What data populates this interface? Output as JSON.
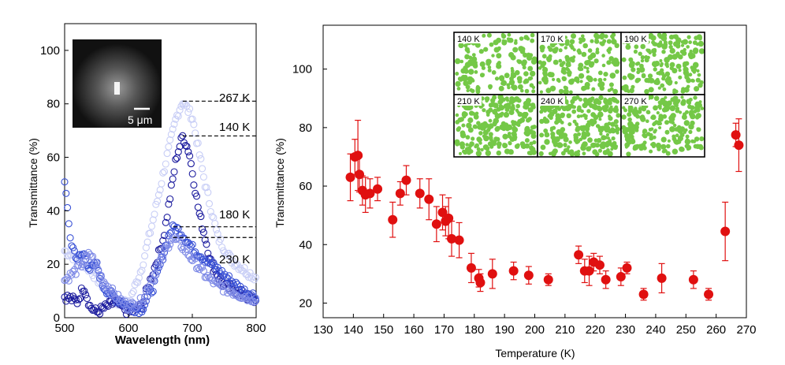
{
  "chart_data": [
    {
      "type": "scatter",
      "xlabel": "Wavelength (nm)",
      "ylabel": "Transmittance (%)",
      "xlim": [
        500,
        800
      ],
      "ylim": [
        0,
        110
      ],
      "x_ticks": [
        "500",
        "600",
        "700",
        "800"
      ],
      "y_ticks": [
        "0",
        "20",
        "40",
        "60",
        "80",
        "100"
      ],
      "marker": "open circle",
      "inset": {
        "scale_bar": "5 μm"
      },
      "annotations": [
        "267 K",
        "140 K",
        "180 K",
        "230 K"
      ],
      "series": [
        {
          "label": "267 K",
          "peak_x": 685,
          "peak_y": 81,
          "color": "#c8cef6",
          "points": [
            [
              500,
              25
            ],
            [
              520,
              22
            ],
            [
              540,
              18
            ],
            [
              560,
              12
            ],
            [
              580,
              6
            ],
            [
              600,
              5
            ],
            [
              620,
              18
            ],
            [
              640,
              38
            ],
            [
              660,
              60
            ],
            [
              675,
              75
            ],
            [
              685,
              81
            ],
            [
              700,
              75
            ],
            [
              720,
              50
            ],
            [
              740,
              30
            ],
            [
              760,
              22
            ],
            [
              780,
              18
            ],
            [
              800,
              15
            ]
          ]
        },
        {
          "label": "140 K",
          "peak_x": 685,
          "peak_y": 68,
          "color": "#1c1c9e",
          "points": [
            [
              500,
              8
            ],
            [
              520,
              6
            ],
            [
              530,
              12
            ],
            [
              540,
              4
            ],
            [
              550,
              2
            ],
            [
              565,
              4
            ],
            [
              580,
              6
            ],
            [
              600,
              2
            ],
            [
              620,
              4
            ],
            [
              640,
              18
            ],
            [
              655,
              30
            ],
            [
              665,
              45
            ],
            [
              675,
              60
            ],
            [
              685,
              68
            ],
            [
              695,
              62
            ],
            [
              710,
              40
            ],
            [
              730,
              20
            ],
            [
              750,
              12
            ],
            [
              770,
              10
            ],
            [
              800,
              6
            ]
          ]
        },
        {
          "label": "180 K",
          "peak_x": 670,
          "peak_y": 34,
          "color": "#3a52d6",
          "points": [
            [
              500,
              52
            ],
            [
              505,
              38
            ],
            [
              510,
              28
            ],
            [
              520,
              22
            ],
            [
              530,
              24
            ],
            [
              540,
              18
            ],
            [
              550,
              20
            ],
            [
              560,
              12
            ],
            [
              575,
              8
            ],
            [
              590,
              6
            ],
            [
              600,
              4
            ],
            [
              620,
              3
            ],
            [
              640,
              12
            ],
            [
              655,
              24
            ],
            [
              665,
              32
            ],
            [
              672,
              34
            ],
            [
              682,
              32
            ],
            [
              700,
              26
            ],
            [
              720,
              22
            ],
            [
              740,
              18
            ],
            [
              760,
              14
            ],
            [
              780,
              10
            ],
            [
              800,
              8
            ]
          ]
        },
        {
          "label": "230 K",
          "peak_x": 670,
          "peak_y": 30,
          "color": "#7e8ae6",
          "points": [
            [
              500,
              14
            ],
            [
              520,
              18
            ],
            [
              540,
              24
            ],
            [
              560,
              14
            ],
            [
              580,
              8
            ],
            [
              600,
              4
            ],
            [
              620,
              6
            ],
            [
              640,
              16
            ],
            [
              655,
              24
            ],
            [
              668,
              30
            ],
            [
              680,
              28
            ],
            [
              700,
              22
            ],
            [
              720,
              16
            ],
            [
              740,
              12
            ],
            [
              760,
              10
            ],
            [
              780,
              8
            ],
            [
              800,
              7
            ]
          ]
        }
      ]
    },
    {
      "type": "scatter",
      "xlabel": "Temperature (K)",
      "ylabel": "Transmittance (%)",
      "xlim": [
        130,
        270
      ],
      "ylim": [
        15,
        115
      ],
      "x_ticks": [
        "130",
        "140",
        "150",
        "160",
        "170",
        "180",
        "190",
        "200",
        "210",
        "220",
        "230",
        "240",
        "250",
        "260",
        "270"
      ],
      "y_ticks": [
        "20",
        "40",
        "60",
        "80",
        "100"
      ],
      "marker": "filled circle",
      "color": "#e01010",
      "points": [
        {
          "x": 139,
          "y": 63,
          "err": 8
        },
        {
          "x": 140.5,
          "y": 70,
          "err": 6
        },
        {
          "x": 141.5,
          "y": 70.5,
          "err": 12
        },
        {
          "x": 142,
          "y": 64,
          "err": 6
        },
        {
          "x": 143,
          "y": 58.5,
          "err": 5
        },
        {
          "x": 144,
          "y": 57,
          "err": 6
        },
        {
          "x": 145.5,
          "y": 57.5,
          "err": 5
        },
        {
          "x": 148,
          "y": 59,
          "err": 4
        },
        {
          "x": 153,
          "y": 48.5,
          "err": 6
        },
        {
          "x": 155.5,
          "y": 57.5,
          "err": 4
        },
        {
          "x": 157.5,
          "y": 62,
          "err": 5
        },
        {
          "x": 162,
          "y": 57.5,
          "err": 5
        },
        {
          "x": 165,
          "y": 55.5,
          "err": 7
        },
        {
          "x": 167.5,
          "y": 47,
          "err": 6
        },
        {
          "x": 169.5,
          "y": 51,
          "err": 6
        },
        {
          "x": 170.5,
          "y": 48,
          "err": 5
        },
        {
          "x": 171.5,
          "y": 49,
          "err": 7
        },
        {
          "x": 172.5,
          "y": 42,
          "err": 6
        },
        {
          "x": 175,
          "y": 41.5,
          "err": 6
        },
        {
          "x": 179,
          "y": 32,
          "err": 5
        },
        {
          "x": 181.5,
          "y": 28.5,
          "err": 3
        },
        {
          "x": 182,
          "y": 27,
          "err": 3
        },
        {
          "x": 186,
          "y": 30,
          "err": 5
        },
        {
          "x": 193,
          "y": 31,
          "err": 3
        },
        {
          "x": 198,
          "y": 29.5,
          "err": 3
        },
        {
          "x": 204.5,
          "y": 28,
          "err": 2
        },
        {
          "x": 214.5,
          "y": 36.5,
          "err": 3
        },
        {
          "x": 216.5,
          "y": 31,
          "err": 4
        },
        {
          "x": 218,
          "y": 31,
          "err": 5
        },
        {
          "x": 219.5,
          "y": 34,
          "err": 3
        },
        {
          "x": 221.5,
          "y": 33,
          "err": 3
        },
        {
          "x": 223.5,
          "y": 28,
          "err": 3
        },
        {
          "x": 228.5,
          "y": 29,
          "err": 3
        },
        {
          "x": 230.5,
          "y": 32,
          "err": 2
        },
        {
          "x": 236,
          "y": 23,
          "err": 2
        },
        {
          "x": 242,
          "y": 28.5,
          "err": 5
        },
        {
          "x": 252.5,
          "y": 28,
          "err": 3
        },
        {
          "x": 257.5,
          "y": 23,
          "err": 2
        },
        {
          "x": 263,
          "y": 44.5,
          "err": 10
        },
        {
          "x": 266.5,
          "y": 77.5,
          "err": 4
        },
        {
          "x": 267.5,
          "y": 74,
          "err": 9
        }
      ],
      "inset_panels": [
        "140 K",
        "170 K",
        "190 K",
        "210 K",
        "240 K",
        "270 K"
      ],
      "inset_color": "#74c847"
    }
  ]
}
